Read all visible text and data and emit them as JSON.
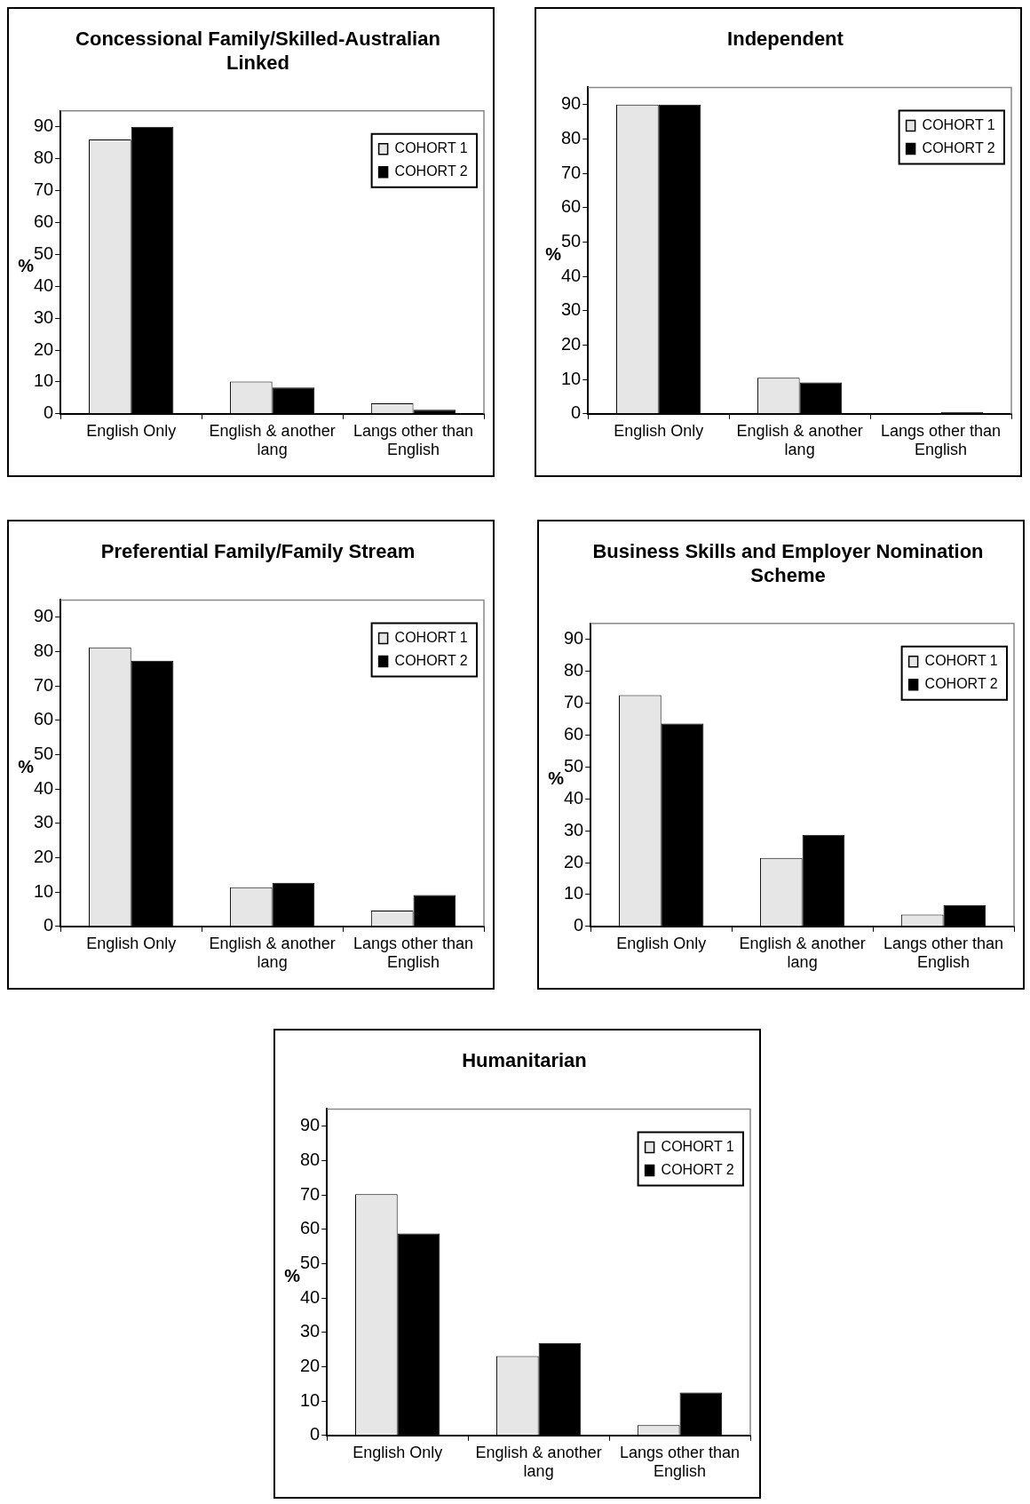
{
  "chart_data": [
    {
      "type": "bar",
      "title": "Concessional Family/Skilled-Australian Linked",
      "ylabel": "%",
      "categories": [
        "English Only",
        "English & another lang",
        "Langs other than English"
      ],
      "series": [
        {
          "name": "COHORT 1",
          "color": "#e6e6e6",
          "values": [
            86,
            10.1,
            3.3
          ]
        },
        {
          "name": "COHORT 2",
          "color": "#000000",
          "values": [
            90,
            8.2,
            1.3
          ]
        }
      ],
      "ylim": [
        0,
        95
      ],
      "yticks": [
        0,
        10,
        20,
        30,
        40,
        50,
        60,
        70,
        80,
        90
      ],
      "grid": false,
      "legend": "top right"
    },
    {
      "type": "bar",
      "title": "Independent",
      "ylabel": "%",
      "categories": [
        "English Only",
        "English & another lang",
        "Langs other than English"
      ],
      "series": [
        {
          "name": "COHORT 1",
          "color": "#e6e6e6",
          "values": [
            90,
            10.5,
            0
          ]
        },
        {
          "name": "COHORT 2",
          "color": "#000000",
          "values": [
            90,
            9.1,
            0.5
          ]
        }
      ],
      "ylim": [
        0,
        95
      ],
      "yticks": [
        0,
        10,
        20,
        30,
        40,
        50,
        60,
        70,
        80,
        90
      ],
      "grid": false,
      "legend": "top right"
    },
    {
      "type": "bar",
      "title": "Preferential Family/Family Stream",
      "ylabel": "%",
      "categories": [
        "English Only",
        "English & another lang",
        "Langs other than English"
      ],
      "series": [
        {
          "name": "COHORT 1",
          "color": "#e6e6e6",
          "values": [
            81.2,
            11.4,
            4.6
          ]
        },
        {
          "name": "COHORT 2",
          "color": "#000000",
          "values": [
            77.3,
            12.7,
            9.1
          ]
        }
      ],
      "ylim": [
        0,
        95
      ],
      "yticks": [
        0,
        10,
        20,
        30,
        40,
        50,
        60,
        70,
        80,
        90
      ],
      "grid": false,
      "legend": "top right"
    },
    {
      "type": "bar",
      "title": "Business Skills and Employer Nomination Scheme",
      "ylabel": "%",
      "categories": [
        "English Only",
        "English & another lang",
        "Langs other than English"
      ],
      "series": [
        {
          "name": "COHORT 1",
          "color": "#e6e6e6",
          "values": [
            72.5,
            21.5,
            3.7
          ]
        },
        {
          "name": "COHORT 2",
          "color": "#000000",
          "values": [
            63.6,
            28.7,
            6.7
          ]
        }
      ],
      "ylim": [
        0,
        95
      ],
      "yticks": [
        0,
        10,
        20,
        30,
        40,
        50,
        60,
        70,
        80,
        90
      ],
      "grid": false,
      "legend": "top right"
    },
    {
      "type": "bar",
      "title": "Humanitarian",
      "ylabel": "%",
      "categories": [
        "English Only",
        "English & another lang",
        "Langs other than English"
      ],
      "series": [
        {
          "name": "COHORT 1",
          "color": "#e6e6e6",
          "values": [
            70.2,
            23.1,
            3.0
          ]
        },
        {
          "name": "COHORT 2",
          "color": "#000000",
          "values": [
            58.8,
            26.9,
            12.5
          ]
        }
      ],
      "ylim": [
        0,
        95
      ],
      "yticks": [
        0,
        10,
        20,
        30,
        40,
        50,
        60,
        70,
        80,
        90
      ],
      "grid": false,
      "legend": "top right"
    }
  ]
}
